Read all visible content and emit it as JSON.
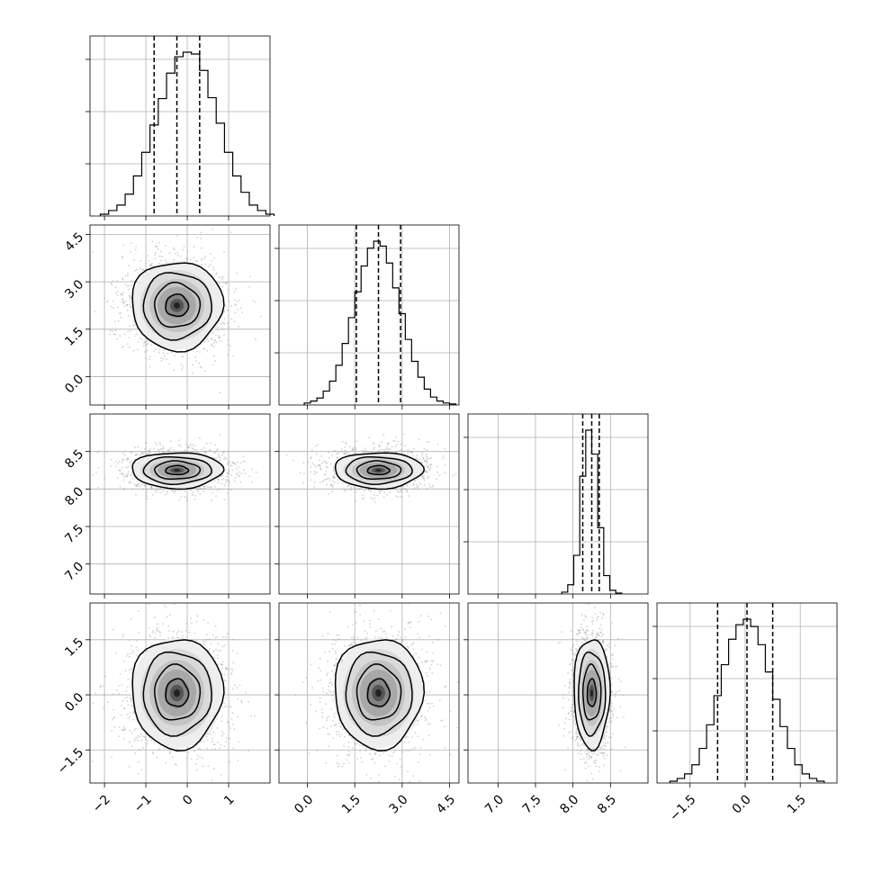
{
  "chart_data": {
    "type": "corner",
    "title": "",
    "parameters": 4,
    "parameter_ranges": [
      [
        -2.35,
        2.0
      ],
      [
        -0.9,
        4.8
      ],
      [
        6.6,
        9.0
      ],
      [
        -2.4,
        2.5
      ]
    ],
    "ticks": [
      {
        "values": [
          -2,
          -1,
          0,
          1
        ],
        "labels": [
          "−2",
          "−1",
          "0",
          "1"
        ]
      },
      {
        "values": [
          0.0,
          1.5,
          3.0,
          4.5
        ],
        "labels": [
          "0.0",
          "1.5",
          "3.0",
          "4.5"
        ]
      },
      {
        "values": [
          7.0,
          7.5,
          8.0,
          8.5
        ],
        "labels": [
          "7.0",
          "7.5",
          "8.0",
          "8.5"
        ]
      },
      {
        "values": [
          -1.5,
          0.0,
          1.5
        ],
        "labels": [
          "−1.5",
          "0.0",
          "1.5"
        ]
      }
    ],
    "marginals": [
      {
        "parameter": 0,
        "quantiles_16_50_84": [
          -0.8,
          -0.25,
          0.3
        ],
        "hist_bin_edges_start": -2.1,
        "bin_width": 0.2,
        "hist_counts": [
          2,
          6,
          12,
          24,
          44,
          70,
          100,
          129,
          157,
          175,
          180,
          178,
          160,
          130,
          102,
          70,
          44,
          26,
          12,
          6,
          2
        ]
      },
      {
        "parameter": 1,
        "quantiles_16_50_84": [
          1.55,
          2.25,
          2.95
        ],
        "hist_bin_edges_start": -0.1,
        "bin_width": 0.2,
        "hist_counts": [
          2,
          4,
          7,
          14,
          24,
          40,
          62,
          88,
          114,
          140,
          158,
          165,
          160,
          143,
          118,
          92,
          66,
          44,
          28,
          16,
          8,
          4,
          2,
          1
        ]
      },
      {
        "parameter": 2,
        "quantiles_16_50_84": [
          8.13,
          8.25,
          8.35
        ],
        "hist_bin_edges_start": 7.85,
        "bin_width": 0.08,
        "hist_counts": [
          2,
          10,
          42,
          128,
          178,
          152,
          72,
          20,
          4,
          1
        ]
      },
      {
        "parameter": 3,
        "quantiles_16_50_84": [
          -0.75,
          0.05,
          0.75
        ],
        "hist_bin_edges_start": -2.05,
        "bin_width": 0.2,
        "hist_counts": [
          2,
          5,
          10,
          20,
          38,
          64,
          96,
          130,
          158,
          174,
          180,
          172,
          152,
          122,
          92,
          62,
          38,
          20,
          10,
          5,
          2
        ]
      }
    ],
    "joint_distributions": [
      {
        "x_param": 0,
        "y_param": 1,
        "mean": [
          -0.25,
          2.25
        ],
        "std": [
          0.55,
          0.7
        ]
      },
      {
        "x_param": 0,
        "y_param": 2,
        "mean": [
          -0.25,
          8.25
        ],
        "std": [
          0.55,
          0.12
        ]
      },
      {
        "x_param": 1,
        "y_param": 2,
        "mean": [
          2.25,
          8.25
        ],
        "std": [
          0.7,
          0.12
        ]
      },
      {
        "x_param": 0,
        "y_param": 3,
        "mean": [
          -0.25,
          0.05
        ],
        "std": [
          0.55,
          0.75
        ]
      },
      {
        "x_param": 1,
        "y_param": 3,
        "mean": [
          2.25,
          0.05
        ],
        "std": [
          0.7,
          0.75
        ]
      },
      {
        "x_param": 2,
        "y_param": 3,
        "mean": [
          8.25,
          0.05
        ],
        "std": [
          0.12,
          0.75
        ]
      }
    ],
    "contour_levels_sigma": [
      0.5,
      1.0,
      1.5,
      2.0
    ],
    "grid": true,
    "colors": {
      "axes": "#000000",
      "grid": "#b0b0b0",
      "points": "#9a9a9a",
      "line": "#000000"
    }
  }
}
